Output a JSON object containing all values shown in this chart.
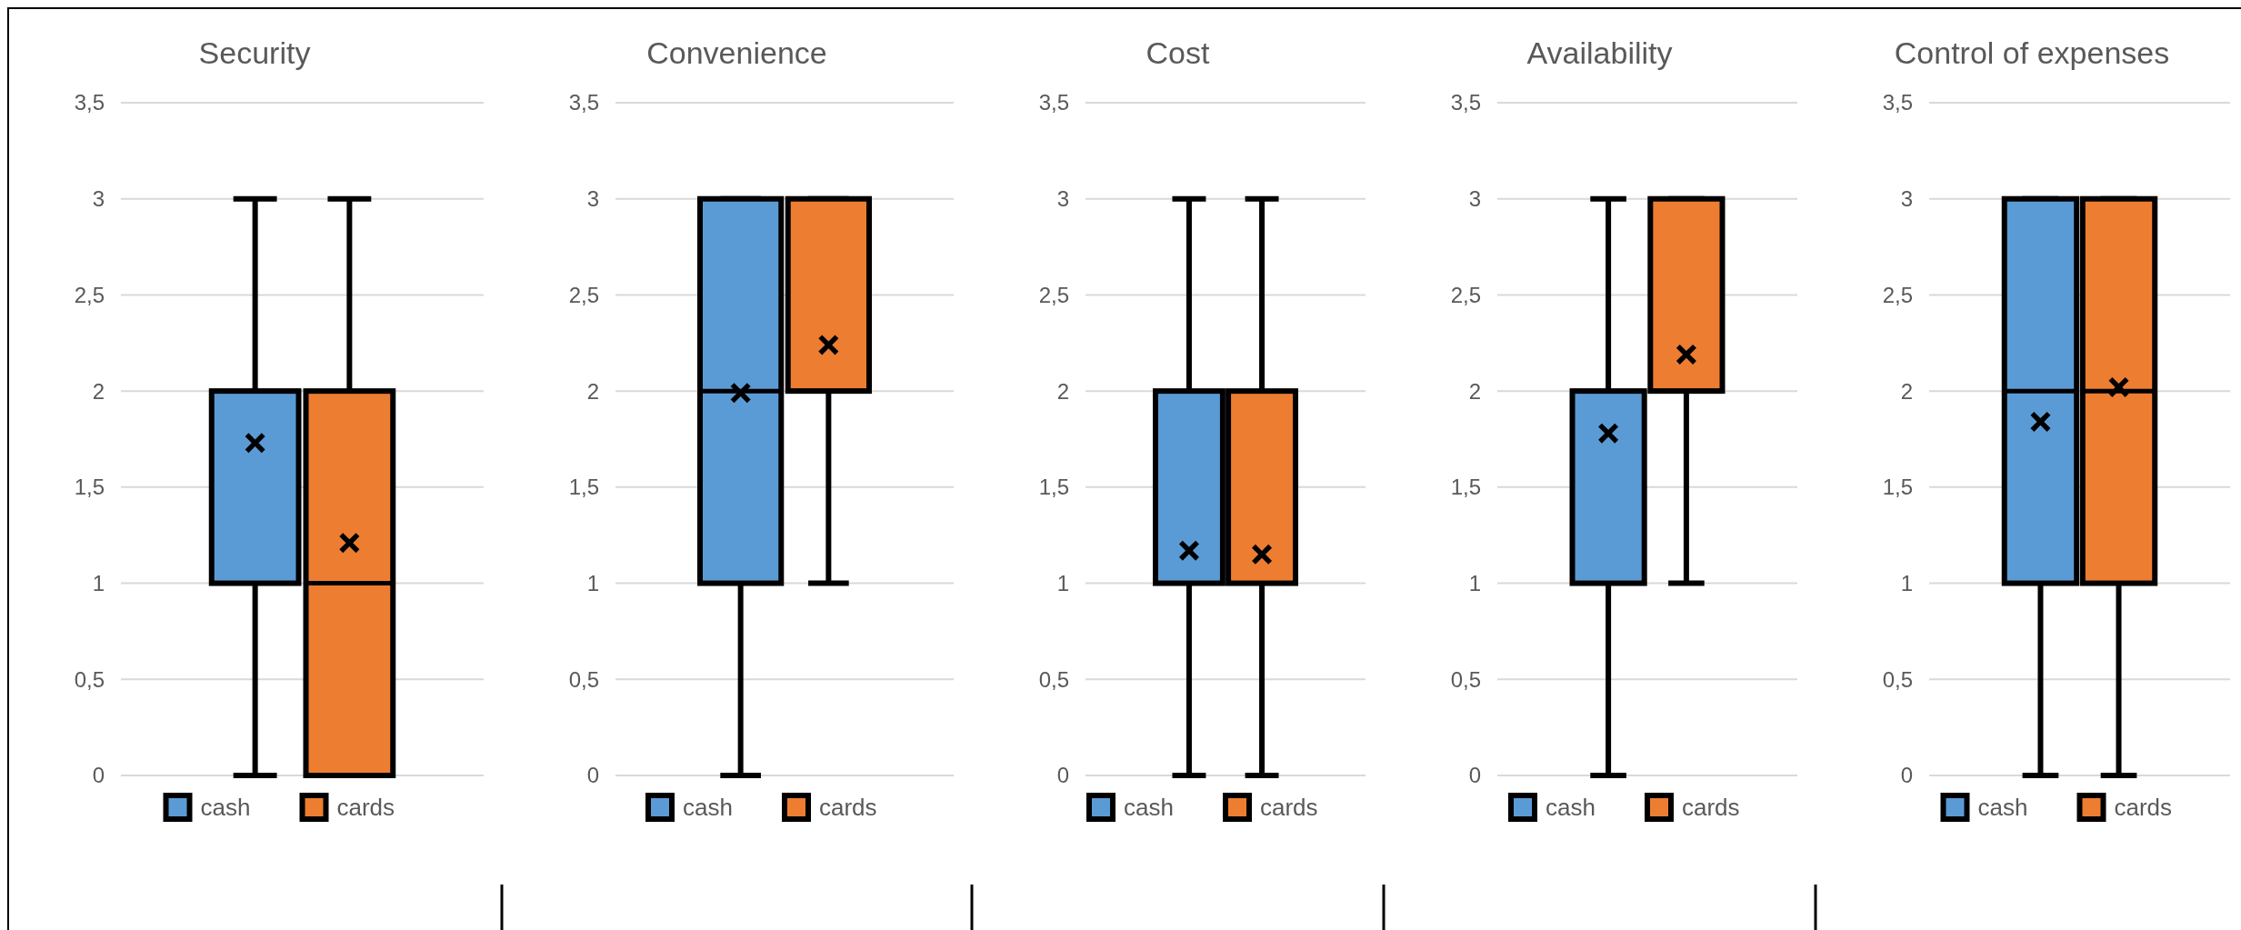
{
  "chart_data": [
    {
      "type": "box",
      "title": "Security",
      "categories": [
        null
      ],
      "ylim": [
        0,
        3.5
      ],
      "yticks": [
        0,
        {
          "value": 0.5,
          "label": "0,5"
        },
        1,
        {
          "value": 1.5,
          "label": "1,5"
        },
        2,
        {
          "value": 2.5,
          "label": "2,5"
        },
        3,
        {
          "value": 3.5,
          "label": "3,5"
        }
      ],
      "grid": "y",
      "legend": "bottom",
      "marker": "cross",
      "series": [
        {
          "name": "cash",
          "color": "#5b9bd5",
          "boxes": [
            {
              "low": 0,
              "q1": 1,
              "median": 2,
              "q3": 2,
              "high": 3,
              "mean": 1.73
            }
          ]
        },
        {
          "name": "cards",
          "color": "#ed7d31",
          "boxes": [
            {
              "low": 0,
              "q1": 0,
              "median": 1,
              "q3": 2,
              "high": 3,
              "mean": 1.21
            }
          ]
        }
      ]
    },
    {
      "type": "box",
      "title": "Convenience",
      "categories": [
        null
      ],
      "ylim": [
        0,
        3.5
      ],
      "yticks": [
        0,
        {
          "value": 0.5,
          "label": "0,5"
        },
        1,
        {
          "value": 1.5,
          "label": "1,5"
        },
        2,
        {
          "value": 2.5,
          "label": "2,5"
        },
        3,
        {
          "value": 3.5,
          "label": "3,5"
        }
      ],
      "grid": "y",
      "legend": "bottom",
      "marker": "cross",
      "series": [
        {
          "name": "cash",
          "color": "#5b9bd5",
          "boxes": [
            {
              "low": 0,
              "q1": 1,
              "median": 2,
              "q3": 3,
              "high": 3,
              "mean": 1.99
            }
          ]
        },
        {
          "name": "cards",
          "color": "#ed7d31",
          "boxes": [
            {
              "low": 1,
              "q1": 2,
              "median": 2,
              "q3": 3,
              "high": 3,
              "mean": 2.24
            }
          ]
        }
      ]
    },
    {
      "type": "box",
      "title": "Cost",
      "categories": [
        null
      ],
      "ylim": [
        0,
        3.5
      ],
      "yticks": [
        0,
        {
          "value": 0.5,
          "label": "0,5"
        },
        1,
        {
          "value": 1.5,
          "label": "1,5"
        },
        2,
        {
          "value": 2.5,
          "label": "2,5"
        },
        3,
        {
          "value": 3.5,
          "label": "3,5"
        }
      ],
      "grid": "y",
      "legend": "bottom",
      "marker": "cross",
      "series": [
        {
          "name": "cash",
          "color": "#5b9bd5",
          "boxes": [
            {
              "low": 0,
              "q1": 1,
              "median": 1,
              "q3": 2,
              "high": 3,
              "mean": 1.17
            }
          ]
        },
        {
          "name": "cards",
          "color": "#ed7d31",
          "boxes": [
            {
              "low": 0,
              "q1": 1,
              "median": 1,
              "q3": 2,
              "high": 3,
              "mean": 1.15
            }
          ]
        }
      ]
    },
    {
      "type": "box",
      "title": "Availability",
      "categories": [
        null
      ],
      "ylim": [
        0,
        3.5
      ],
      "yticks": [
        0,
        {
          "value": 0.5,
          "label": "0,5"
        },
        1,
        {
          "value": 1.5,
          "label": "1,5"
        },
        2,
        {
          "value": 2.5,
          "label": "2,5"
        },
        3,
        {
          "value": 3.5,
          "label": "3,5"
        }
      ],
      "grid": "y",
      "legend": "bottom",
      "marker": "cross",
      "series": [
        {
          "name": "cash",
          "color": "#5b9bd5",
          "boxes": [
            {
              "low": 0,
              "q1": 1,
              "median": 2,
              "q3": 2,
              "high": 3,
              "mean": 1.78
            }
          ]
        },
        {
          "name": "cards",
          "color": "#ed7d31",
          "boxes": [
            {
              "low": 1,
              "q1": 2,
              "median": 2,
              "q3": 3,
              "high": 3,
              "mean": 2.19
            }
          ]
        }
      ]
    },
    {
      "type": "box",
      "title": "Control of expenses",
      "categories": [
        null
      ],
      "ylim": [
        0,
        3.5
      ],
      "yticks": [
        0,
        {
          "value": 0.5,
          "label": "0,5"
        },
        1,
        {
          "value": 1.5,
          "label": "1,5"
        },
        2,
        {
          "value": 2.5,
          "label": "2,5"
        },
        3,
        {
          "value": 3.5,
          "label": "3,5"
        }
      ],
      "grid": "y",
      "legend": "bottom",
      "marker": "cross",
      "series": [
        {
          "name": "cash",
          "color": "#5b9bd5",
          "boxes": [
            {
              "low": 0,
              "q1": 1,
              "median": 2,
              "q3": 3,
              "high": 3,
              "mean": 1.84
            }
          ]
        },
        {
          "name": "cards",
          "color": "#ed7d31",
          "boxes": [
            {
              "low": 0,
              "q1": 1,
              "median": 2,
              "q3": 3,
              "high": 3,
              "mean": 2.02
            }
          ]
        }
      ]
    }
  ]
}
